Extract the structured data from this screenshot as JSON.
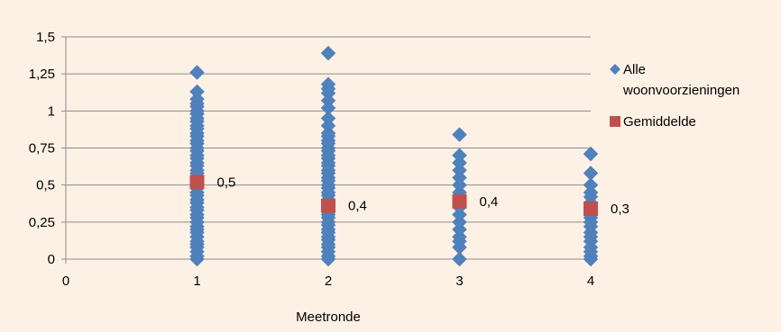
{
  "chart_data": {
    "type": "scatter",
    "title": "",
    "xlabel": "Meetronde",
    "ylabel": "",
    "xlim": [
      0,
      4
    ],
    "ylim": [
      0,
      1.5
    ],
    "x_ticks": [
      "0",
      "1",
      "2",
      "3",
      "4"
    ],
    "y_ticks": [
      "0",
      "0,25",
      "0,5",
      "0,75",
      "1",
      "1,25",
      "1,5"
    ],
    "grid": "horizontal",
    "legend_position": "right",
    "series": [
      {
        "name": "Alle woonvoorzieningen",
        "color": "#4f81bd",
        "marker": "diamond",
        "points": [
          {
            "x": 1,
            "y": [
              0,
              0.02,
              0.05,
              0.08,
              0.1,
              0.12,
              0.15,
              0.18,
              0.2,
              0.22,
              0.25,
              0.28,
              0.3,
              0.33,
              0.35,
              0.38,
              0.4,
              0.43,
              0.45,
              0.48,
              0.5,
              0.53,
              0.55,
              0.58,
              0.6,
              0.63,
              0.65,
              0.68,
              0.7,
              0.73,
              0.75,
              0.78,
              0.8,
              0.83,
              0.85,
              0.88,
              0.9,
              0.93,
              0.95,
              0.98,
              1.0,
              1.03,
              1.05,
              1.08,
              1.13,
              1.26
            ]
          },
          {
            "x": 2,
            "y": [
              0,
              0.02,
              0.05,
              0.08,
              0.1,
              0.13,
              0.15,
              0.18,
              0.2,
              0.23,
              0.25,
              0.28,
              0.3,
              0.33,
              0.35,
              0.38,
              0.4,
              0.43,
              0.45,
              0.48,
              0.5,
              0.53,
              0.55,
              0.58,
              0.6,
              0.63,
              0.65,
              0.68,
              0.7,
              0.73,
              0.75,
              0.78,
              0.8,
              0.83,
              0.85,
              0.9,
              0.95,
              1.02,
              1.07,
              1.12,
              1.15,
              1.18,
              1.39
            ]
          },
          {
            "x": 3,
            "y": [
              0,
              0.08,
              0.12,
              0.15,
              0.2,
              0.25,
              0.3,
              0.35,
              0.4,
              0.45,
              0.5,
              0.55,
              0.6,
              0.65,
              0.7,
              0.84
            ]
          },
          {
            "x": 4,
            "y": [
              0,
              0.02,
              0.05,
              0.08,
              0.12,
              0.15,
              0.18,
              0.22,
              0.25,
              0.28,
              0.32,
              0.35,
              0.38,
              0.42,
              0.45,
              0.5,
              0.58,
              0.71
            ]
          }
        ]
      },
      {
        "name": "Gemiddelde",
        "color": "#c0504d",
        "marker": "square",
        "points": [
          {
            "x": 1,
            "y": 0.52,
            "label": "0,5"
          },
          {
            "x": 2,
            "y": 0.36,
            "label": "0,4"
          },
          {
            "x": 3,
            "y": 0.39,
            "label": "0,4"
          },
          {
            "x": 4,
            "y": 0.34,
            "label": "0,3"
          }
        ]
      }
    ],
    "legend": [
      {
        "label": "Alle",
        "label2": "woonvoorzieningen",
        "marker": "diamond",
        "color": "#4f81bd"
      },
      {
        "label": "Gemiddelde",
        "marker": "square",
        "color": "#c0504d"
      }
    ]
  }
}
